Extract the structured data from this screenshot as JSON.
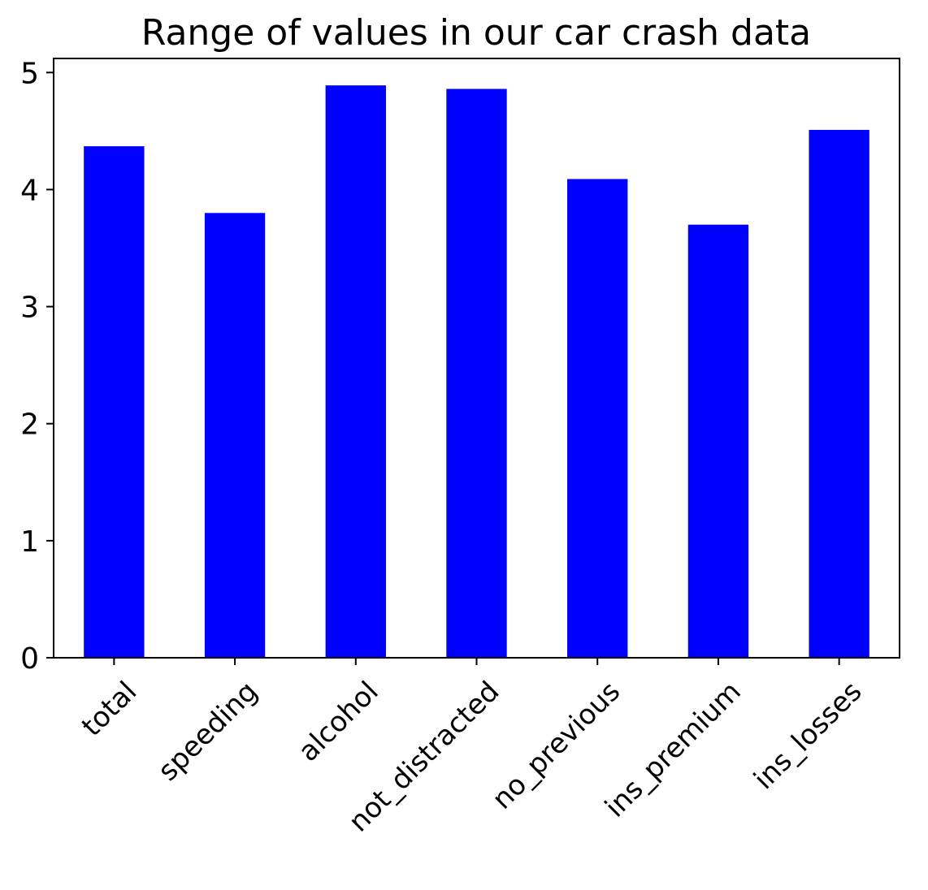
{
  "chart_data": {
    "type": "bar",
    "title": "Range of values in our car crash data",
    "xlabel": "",
    "ylabel": "",
    "categories": [
      "total",
      "speeding",
      "alcohol",
      "not_distracted",
      "no_previous",
      "ins_premium",
      "ins_losses"
    ],
    "values": [
      4.37,
      3.8,
      4.89,
      4.86,
      4.09,
      3.7,
      4.51
    ],
    "ylim": [
      0,
      5.12
    ],
    "yticks": [
      0,
      1,
      2,
      3,
      4,
      5
    ],
    "bar_color": "#0000ff",
    "grid": false,
    "legend": "none"
  }
}
